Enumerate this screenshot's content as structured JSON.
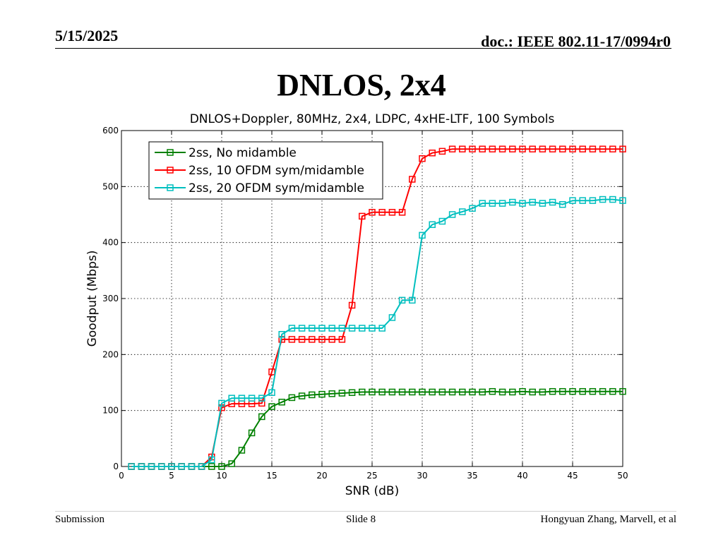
{
  "header": {
    "date": "5/15/2025",
    "doc": "doc.: IEEE 802.11-17/0994r0"
  },
  "slide": {
    "title": "DNLOS, 2x4"
  },
  "footer": {
    "left": "Submission",
    "center": "Slide 8",
    "right": "Hongyuan Zhang, Marvell, et al"
  },
  "chart_data": {
    "type": "line",
    "title": "DNLOS+Doppler, 80MHz, 2x4, LDPC, 4xHE-LTF, 100 Symbols",
    "xlabel": "SNR (dB)",
    "ylabel": "Goodput (Mbps)",
    "xlim": [
      0,
      50
    ],
    "ylim": [
      0,
      600
    ],
    "xticks": [
      0,
      5,
      10,
      15,
      20,
      25,
      30,
      35,
      40,
      45,
      50
    ],
    "yticks": [
      0,
      100,
      200,
      300,
      400,
      500,
      600
    ],
    "grid": true,
    "legend_position": "top-left",
    "x": [
      1,
      2,
      3,
      4,
      5,
      6,
      7,
      8,
      9,
      10,
      11,
      12,
      13,
      14,
      15,
      16,
      17,
      18,
      19,
      20,
      21,
      22,
      23,
      24,
      25,
      26,
      27,
      28,
      29,
      30,
      31,
      32,
      33,
      34,
      35,
      36,
      37,
      38,
      39,
      40,
      41,
      42,
      43,
      44,
      45,
      46,
      47,
      48,
      49,
      50
    ],
    "series": [
      {
        "name": "2ss, No midamble",
        "color": "#008000",
        "marker": "square",
        "values": [
          0,
          0,
          0,
          0,
          0,
          0,
          0,
          0,
          0,
          0,
          5,
          29,
          60,
          89,
          107,
          115,
          123,
          126,
          128,
          129,
          130,
          131,
          132,
          133,
          133,
          133,
          133,
          133,
          133,
          133,
          133,
          133,
          133,
          133,
          133,
          133,
          134,
          133,
          133,
          134,
          133,
          133,
          134,
          134,
          134,
          134,
          134,
          134,
          134,
          134
        ]
      },
      {
        "name": "2ss, 10 OFDM sym/midamble",
        "color": "#ff0000",
        "marker": "square",
        "values": [
          0,
          0,
          0,
          0,
          0,
          0,
          0,
          0,
          17,
          105,
          112,
          112,
          112,
          113,
          169,
          227,
          227,
          227,
          227,
          227,
          227,
          227,
          288,
          447,
          454,
          454,
          454,
          454,
          513,
          550,
          560,
          563,
          567,
          567,
          567,
          567,
          567,
          567,
          567,
          567,
          567,
          567,
          567,
          567,
          567,
          567,
          567,
          567,
          567,
          567
        ]
      },
      {
        "name": "2ss, 20 OFDM sym/midamble",
        "color": "#00bfbf",
        "marker": "square",
        "values": [
          0,
          0,
          0,
          0,
          0,
          0,
          0,
          0,
          12,
          113,
          122,
          122,
          122,
          122,
          132,
          236,
          247,
          247,
          247,
          247,
          247,
          247,
          247,
          247,
          247,
          247,
          266,
          297,
          297,
          413,
          432,
          438,
          450,
          455,
          461,
          470,
          470,
          470,
          472,
          470,
          472,
          470,
          472,
          468,
          475,
          475,
          475,
          477,
          477,
          475
        ]
      }
    ]
  }
}
